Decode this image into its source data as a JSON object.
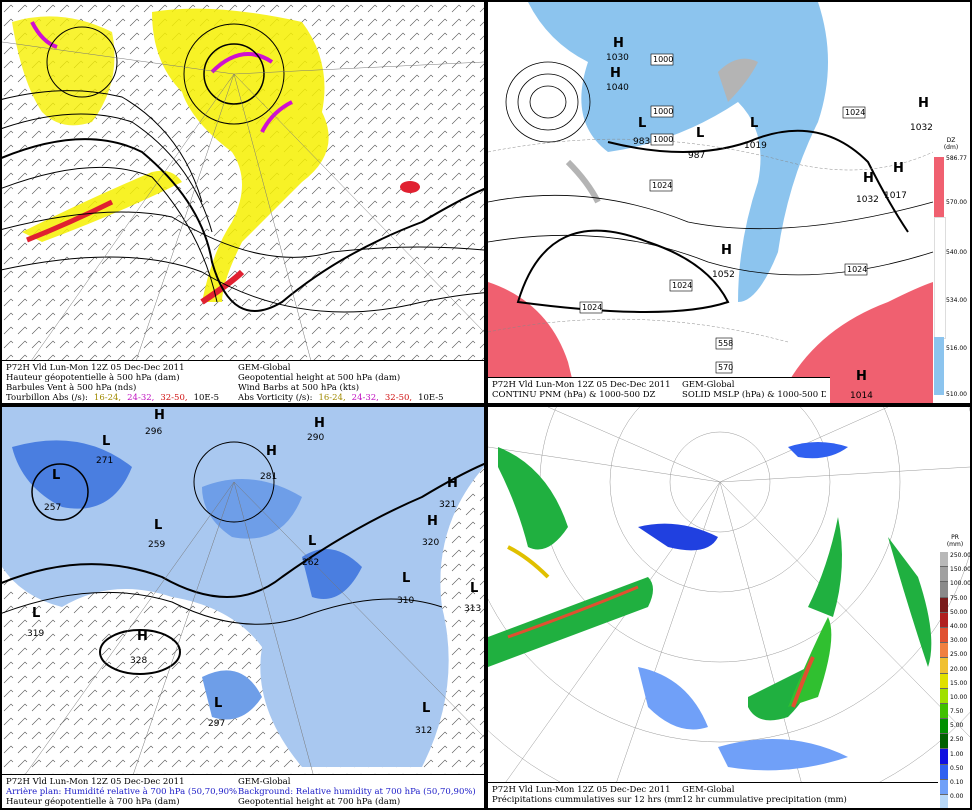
{
  "panels": {
    "tl": {
      "caption": {
        "left": [
          "P72H Vld Lun-Mon 12Z 05 Dec-Dec 2011",
          "Hauteur géopotentielle à 500 hPa (dam)",
          "Barbules Vent à 500 hPa (nds)",
          "Tourbillon Abs (/s):"
        ],
        "right": [
          "GEM-Global",
          "Geopotential height at 500 hPa (dam)",
          "Wind Barbs at 500 hPa  (kts)",
          "Abs Vorticity (/s):"
        ],
        "legend": [
          "16-24,",
          "24-32,",
          "32-50,",
          "10E-5"
        ]
      }
    },
    "tr": {
      "caption": {
        "left": [
          "P72H Vld Lun-Mon 12Z 05 Dec-Dec 2011",
          "CONTINU PNM  (hPa) & 1000-500 DZ"
        ],
        "right": [
          "GEM-Global",
          "SOLID   MSLP (hPa) & 1000-500 DZ"
        ]
      },
      "colorbar": {
        "title": "DZ\n(dm)",
        "labels": [
          "586.77",
          "570.00",
          "540.00",
          "534.00",
          "516.00",
          "510.00"
        ]
      },
      "highs": [
        {
          "label": "H",
          "value": "1030"
        },
        {
          "label": "H",
          "value": "1040"
        },
        {
          "label": "H",
          "value": "1032"
        },
        {
          "label": "H",
          "value": "1032"
        },
        {
          "label": "H",
          "value": "1017"
        },
        {
          "label": "H",
          "value": "1052"
        },
        {
          "label": "H",
          "value": "1014"
        }
      ],
      "lows": [
        {
          "label": "L",
          "value": "983"
        },
        {
          "label": "L",
          "value": "987"
        },
        {
          "label": "L",
          "value": "1019"
        }
      ],
      "boxes": [
        "1024",
        "1000",
        "1000",
        "1000",
        "1024",
        "1024",
        "1024",
        "1024",
        "558",
        "570"
      ]
    },
    "bl": {
      "caption": {
        "left": [
          "P72H Vld Lun-Mon 12Z 05 Dec-Dec 2011",
          "Arrière plan: Humidité relative à 700 hPa (50,70,90%)",
          "Hauteur géopotentielle à 700 hPa (dam)"
        ],
        "right": [
          "GEM-Global",
          "Background: Relative humidity at 700 hPa (50,70,90%)",
          "Geopotential height at 700 hPa (dam)"
        ]
      },
      "highs": [
        {
          "label": "H",
          "value": "296"
        },
        {
          "label": "H",
          "value": "321"
        },
        {
          "label": "H",
          "value": "320"
        },
        {
          "label": "H",
          "value": "328"
        },
        {
          "label": "H",
          "value": "281"
        },
        {
          "label": "H",
          "value": "290"
        }
      ],
      "lows": [
        {
          "label": "L",
          "value": "271"
        },
        {
          "label": "L",
          "value": "257"
        },
        {
          "label": "L",
          "value": "259"
        },
        {
          "label": "L",
          "value": "262"
        },
        {
          "label": "L",
          "value": "319"
        },
        {
          "label": "L",
          "value": "310"
        },
        {
          "label": "L",
          "value": "313"
        },
        {
          "label": "L",
          "value": "297"
        },
        {
          "label": "L",
          "value": "312"
        }
      ]
    },
    "br": {
      "caption": {
        "left": [
          "P72H Vld Lun-Mon 12Z 05 Dec-Dec 2011",
          "Précipitations cummulatives sur 12 hrs (mm)"
        ],
        "right": [
          "GEM-Global",
          "12 hr cummulative precipitation        (mm)"
        ]
      },
      "colorbar": {
        "title": "PR\n(mm)",
        "labels": [
          "250.00",
          "150.00",
          "100.00",
          "75.00",
          "50.00",
          "40.00",
          "30.00",
          "25.00",
          "20.00",
          "15.00",
          "10.00",
          "7.50",
          "5.00",
          "2.50",
          "1.00",
          "0.50",
          "0.10",
          "0.00"
        ],
        "colors": [
          "#b8b8b8",
          "#a0a0a0",
          "#8a8a8a",
          "#7a1b1b",
          "#b02020",
          "#e05030",
          "#f08040",
          "#f0c030",
          "#e0e000",
          "#a0e000",
          "#40c000",
          "#009000",
          "#006000",
          "#1010e0",
          "#3060f0",
          "#70a0f8",
          "#b8d8f8",
          "#ffffff"
        ]
      }
    }
  }
}
